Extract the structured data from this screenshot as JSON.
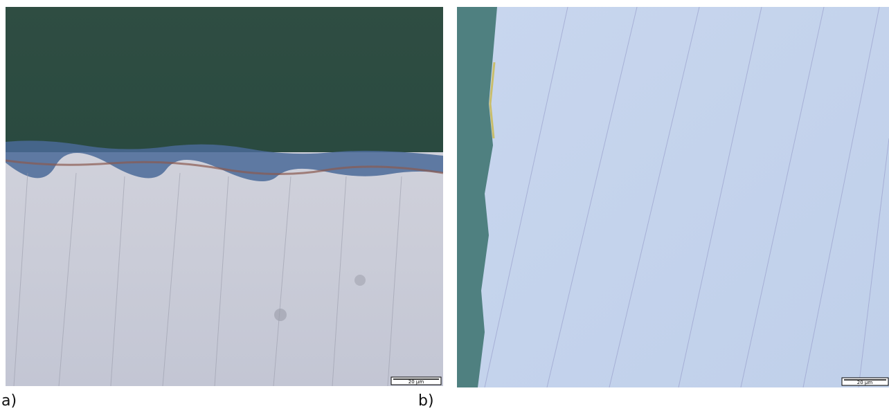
{
  "panels": [
    {
      "label": "a)",
      "scale_bar": "20 µm"
    },
    {
      "label": "b)",
      "scale_bar": "20 µm"
    }
  ]
}
